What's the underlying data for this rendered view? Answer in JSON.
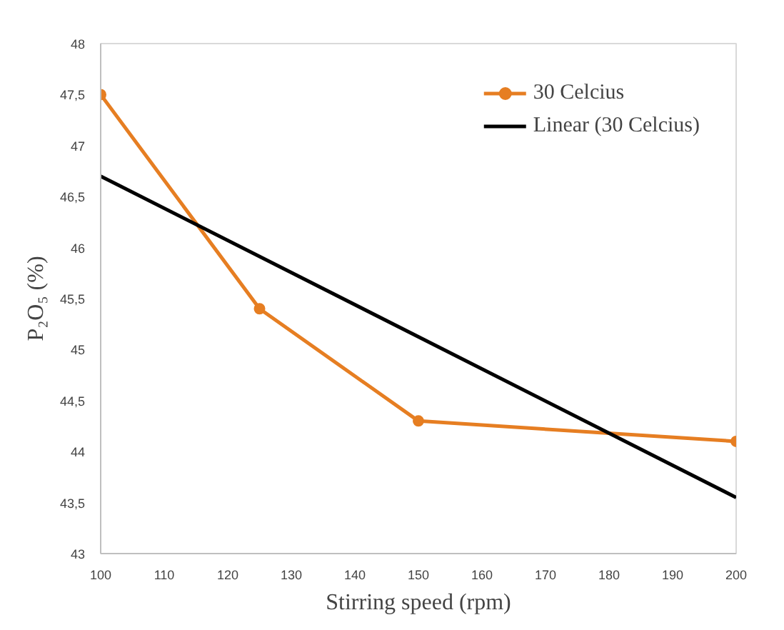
{
  "chart_data": {
    "type": "line",
    "xlabel": "Stirring speed (rpm)",
    "ylabel": "P₂O₅ (%)",
    "x": [
      100,
      125,
      150,
      200
    ],
    "series": [
      {
        "name": "30 Celcius",
        "color": "#e67e22",
        "values": [
          47.5,
          45.4,
          44.3,
          44.1
        ],
        "marker": "circle"
      },
      {
        "name": "Linear (30 Celcius)",
        "color": "#000000",
        "type": "line",
        "x": [
          100,
          200
        ],
        "values": [
          46.7,
          43.55
        ],
        "marker": "none"
      }
    ],
    "xlim": [
      100,
      200
    ],
    "xticks": [
      100,
      110,
      120,
      130,
      140,
      150,
      160,
      170,
      180,
      190,
      200
    ],
    "ylim": [
      43,
      48
    ],
    "yticks": [
      43,
      {
        "value": 43.5,
        "label": "43,5"
      },
      44,
      {
        "value": 44.5,
        "label": "44,5"
      },
      45,
      {
        "value": 45.5,
        "label": "45,5"
      },
      46,
      {
        "value": 46.5,
        "label": "46,5"
      },
      47,
      {
        "value": 47.5,
        "label": "47,5"
      },
      48
    ],
    "grid": false,
    "legend": "top right",
    "line_style": "solid"
  }
}
